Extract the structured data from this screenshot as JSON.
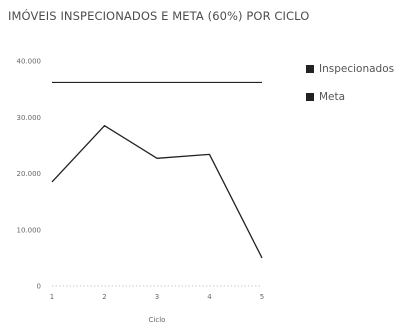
{
  "chart_data": {
    "type": "line",
    "title": "IMÓVEIS INSPECIONADOS E META (60%) POR CICLO",
    "xlabel": "Ciclo",
    "ylabel": "",
    "x": [
      1,
      2,
      3,
      4,
      5
    ],
    "x_tick_labels": [
      "1",
      "2",
      "3",
      "4",
      "5"
    ],
    "ylim": [
      0,
      40000
    ],
    "y_ticks": [
      0,
      10000,
      20000,
      30000,
      40000
    ],
    "y_tick_labels": [
      "0",
      "10.000",
      "20.000",
      "30.000",
      "40.000"
    ],
    "grid": false,
    "legend_position": "right",
    "series": [
      {
        "name": "Inspecionados",
        "values": [
          18500,
          28500,
          22700,
          23400,
          5000
        ],
        "color": "#222222"
      },
      {
        "name": "Meta",
        "values": [
          36200,
          36200,
          36200,
          36200,
          36200
        ],
        "color": "#222222"
      }
    ]
  }
}
